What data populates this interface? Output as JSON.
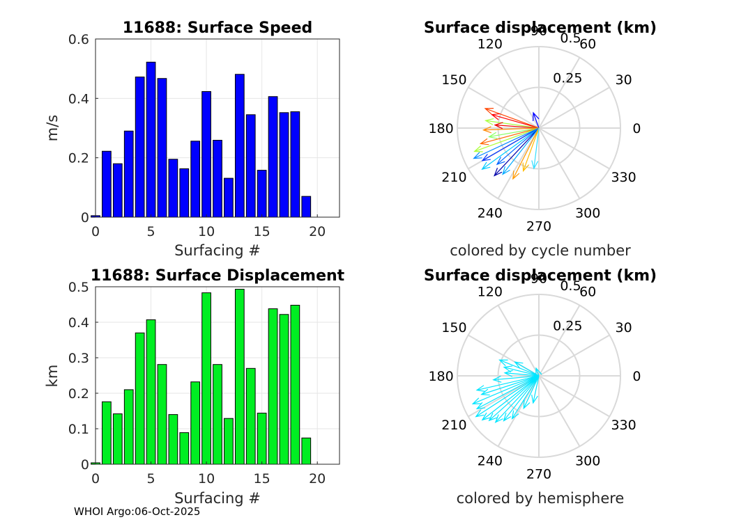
{
  "chart_data": [
    {
      "type": "bar",
      "title": "11688: Surface Speed",
      "xlabel": "Surfacing #",
      "ylabel": "m/s",
      "xlim": [
        0,
        22
      ],
      "ylim": [
        0,
        0.6
      ],
      "xticks": [
        "0",
        "5",
        "10",
        "15",
        "20"
      ],
      "yticks": [
        "0",
        "0.2",
        "0.4",
        "0.6"
      ],
      "bar_color": "#0000ff",
      "categories": [
        0,
        1,
        2,
        3,
        4,
        5,
        6,
        7,
        8,
        9,
        10,
        11,
        12,
        13,
        14,
        15,
        16,
        17,
        18,
        19
      ],
      "values": [
        0.005,
        0.222,
        0.18,
        0.29,
        0.472,
        0.522,
        0.467,
        0.195,
        0.163,
        0.256,
        0.423,
        0.259,
        0.131,
        0.481,
        0.345,
        0.158,
        0.406,
        0.352,
        0.355,
        0.07
      ]
    },
    {
      "type": "bar",
      "title": "11688: Surface Displacement",
      "xlabel": "Surfacing #",
      "ylabel": "km",
      "xlim": [
        0,
        22
      ],
      "ylim": [
        0,
        0.5
      ],
      "xticks": [
        "0",
        "5",
        "10",
        "15",
        "20"
      ],
      "yticks": [
        "0",
        "0.1",
        "0.2",
        "0.3",
        "0.4",
        "0.5"
      ],
      "bar_color": "#00ee22",
      "categories": [
        0,
        1,
        2,
        3,
        4,
        5,
        6,
        7,
        8,
        9,
        10,
        11,
        12,
        13,
        14,
        15,
        16,
        17,
        18,
        19
      ],
      "values": [
        0.004,
        0.176,
        0.142,
        0.21,
        0.37,
        0.407,
        0.281,
        0.14,
        0.089,
        0.232,
        0.483,
        0.281,
        0.129,
        0.493,
        0.27,
        0.144,
        0.438,
        0.422,
        0.448,
        0.074
      ]
    },
    {
      "type": "polar-vectors",
      "title": "Surface displacement (km)",
      "caption": "colored by cycle number",
      "r_ticks": [
        "0.25",
        "0.5"
      ],
      "rlim": [
        0,
        0.5
      ],
      "theta_ticks": [
        "0",
        "30",
        "60",
        "90",
        "120",
        "150",
        "180",
        "210",
        "240",
        "270",
        "300",
        "330"
      ],
      "vectors": [
        {
          "angle_deg": 110,
          "r": 0.1,
          "color": "#0000ff"
        },
        {
          "angle_deg": 160,
          "r": 0.35,
          "color": "#ff4400"
        },
        {
          "angle_deg": 164,
          "r": 0.3,
          "color": "#ff0000"
        },
        {
          "angle_deg": 172,
          "r": 0.33,
          "color": "#aaff44"
        },
        {
          "angle_deg": 176,
          "r": 0.27,
          "color": "#ee0000"
        },
        {
          "angle_deg": 182,
          "r": 0.34,
          "color": "#ff8800"
        },
        {
          "angle_deg": 190,
          "r": 0.31,
          "color": "#88ff66"
        },
        {
          "angle_deg": 195,
          "r": 0.37,
          "color": "#ff6600"
        },
        {
          "angle_deg": 200,
          "r": 0.42,
          "color": "#aaff33"
        },
        {
          "angle_deg": 205,
          "r": 0.44,
          "color": "#0088ff"
        },
        {
          "angle_deg": 210,
          "r": 0.4,
          "color": "#0033ff"
        },
        {
          "angle_deg": 216,
          "r": 0.43,
          "color": "#00ccff"
        },
        {
          "angle_deg": 221,
          "r": 0.34,
          "color": "#0066ff"
        },
        {
          "angle_deg": 227,
          "r": 0.4,
          "color": "#0000aa"
        },
        {
          "angle_deg": 232,
          "r": 0.36,
          "color": "#00aaff"
        },
        {
          "angle_deg": 243,
          "r": 0.35,
          "color": "#ff9900"
        },
        {
          "angle_deg": 250,
          "r": 0.28,
          "color": "#ffbb00"
        },
        {
          "angle_deg": 263,
          "r": 0.25,
          "color": "#33ddff"
        }
      ]
    },
    {
      "type": "polar-vectors",
      "title": "Surface displacement (km)",
      "caption": "colored by hemisphere",
      "r_ticks": [
        "0.25",
        "0.5"
      ],
      "rlim": [
        0,
        0.5
      ],
      "theta_ticks": [
        "0",
        "30",
        "60",
        "90",
        "120",
        "150",
        "180",
        "210",
        "240",
        "270",
        "300",
        "330"
      ],
      "vectors": [
        {
          "angle_deg": 110,
          "r": 0.05,
          "color": "#00e5ff"
        },
        {
          "angle_deg": 150,
          "r": 0.17,
          "color": "#00e5ff"
        },
        {
          "angle_deg": 158,
          "r": 0.26,
          "color": "#00e5ff"
        },
        {
          "angle_deg": 166,
          "r": 0.22,
          "color": "#00e5ff"
        },
        {
          "angle_deg": 175,
          "r": 0.21,
          "color": "#00e5ff"
        },
        {
          "angle_deg": 185,
          "r": 0.28,
          "color": "#00e5ff"
        },
        {
          "angle_deg": 193,
          "r": 0.39,
          "color": "#00e5ff"
        },
        {
          "angle_deg": 198,
          "r": 0.37,
          "color": "#00e5ff"
        },
        {
          "angle_deg": 203,
          "r": 0.44,
          "color": "#00e5ff"
        },
        {
          "angle_deg": 208,
          "r": 0.43,
          "color": "#00e5ff"
        },
        {
          "angle_deg": 213,
          "r": 0.46,
          "color": "#00e5ff"
        },
        {
          "angle_deg": 218,
          "r": 0.44,
          "color": "#00e5ff"
        },
        {
          "angle_deg": 222,
          "r": 0.41,
          "color": "#00e5ff"
        },
        {
          "angle_deg": 227,
          "r": 0.39,
          "color": "#00e5ff"
        },
        {
          "angle_deg": 232,
          "r": 0.35,
          "color": "#00e5ff"
        },
        {
          "angle_deg": 238,
          "r": 0.31,
          "color": "#00e5ff"
        },
        {
          "angle_deg": 245,
          "r": 0.22,
          "color": "#00e5ff"
        },
        {
          "angle_deg": 258,
          "r": 0.17,
          "color": "#00e5ff"
        }
      ]
    }
  ],
  "footer": "WHOI Argo:06-Oct-2025"
}
